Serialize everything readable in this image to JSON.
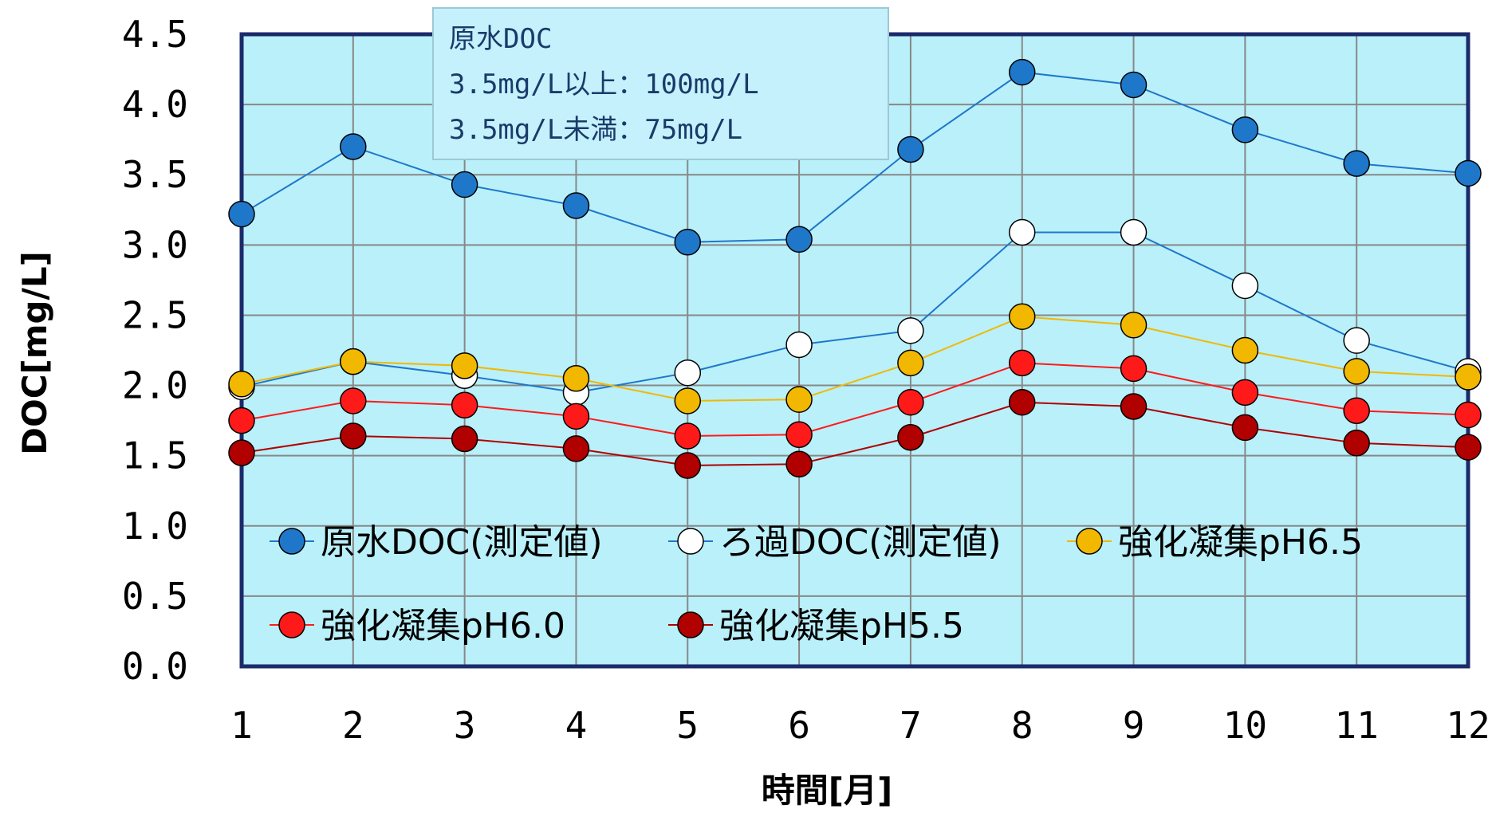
{
  "chart_data": {
    "type": "line",
    "title": "",
    "xlabel": "時間[月]",
    "ylabel": "DOC[mg/L]",
    "x": [
      1,
      2,
      3,
      4,
      5,
      6,
      7,
      8,
      9,
      10,
      11,
      12
    ],
    "x_tick_labels": [
      "1",
      "2",
      "3",
      "4",
      "5",
      "6",
      "7",
      "8",
      "9",
      "10",
      "11",
      "12"
    ],
    "ylim": [
      0.0,
      4.5
    ],
    "y_tick_labels": [
      "0.0",
      "0.5",
      "1.0",
      "1.5",
      "2.0",
      "2.5",
      "3.0",
      "3.5",
      "4.0",
      "4.5"
    ],
    "grid": true,
    "legend_position": "bottom-inside",
    "series": [
      {
        "name": "原水DOC(測定値)",
        "marker_color": "#1f77c9",
        "line_color": "#1f77c9",
        "values": [
          3.22,
          3.7,
          3.43,
          3.28,
          3.02,
          3.04,
          3.68,
          4.23,
          4.14,
          3.82,
          3.58,
          3.51
        ]
      },
      {
        "name": "ろ過DOC(測定値)",
        "marker_color": "#ffffff",
        "line_color": "#1f77c9",
        "values": [
          1.99,
          2.17,
          2.07,
          1.95,
          2.09,
          2.29,
          2.39,
          3.09,
          3.09,
          2.71,
          2.32,
          2.1
        ]
      },
      {
        "name": "強化凝集pH6.5",
        "marker_color": "#f2b800",
        "line_color": "#f2b800",
        "values": [
          2.01,
          2.17,
          2.14,
          2.05,
          1.89,
          1.9,
          2.16,
          2.49,
          2.43,
          2.25,
          2.1,
          2.06
        ]
      },
      {
        "name": "強化凝集pH6.0",
        "marker_color": "#ff1a1a",
        "line_color": "#ff1a1a",
        "values": [
          1.75,
          1.89,
          1.86,
          1.78,
          1.64,
          1.65,
          1.88,
          2.16,
          2.12,
          1.95,
          1.82,
          1.79
        ]
      },
      {
        "name": "強化凝集pH5.5",
        "marker_color": "#b00000",
        "line_color": "#b00000",
        "values": [
          1.52,
          1.64,
          1.62,
          1.55,
          1.43,
          1.44,
          1.63,
          1.88,
          1.85,
          1.7,
          1.59,
          1.56
        ]
      }
    ],
    "annotation": {
      "lines": [
        "原水DOC",
        "3.5mg/L以上：100mg/L",
        "3.5mg/L未満：75mg/L"
      ]
    }
  },
  "colors": {
    "plot_background": "#b9f0fa",
    "plot_border": "#1a2a6a",
    "grid": "#888888",
    "annotation_background": "#c4f1fb",
    "annotation_border": "#9ec8d6"
  }
}
